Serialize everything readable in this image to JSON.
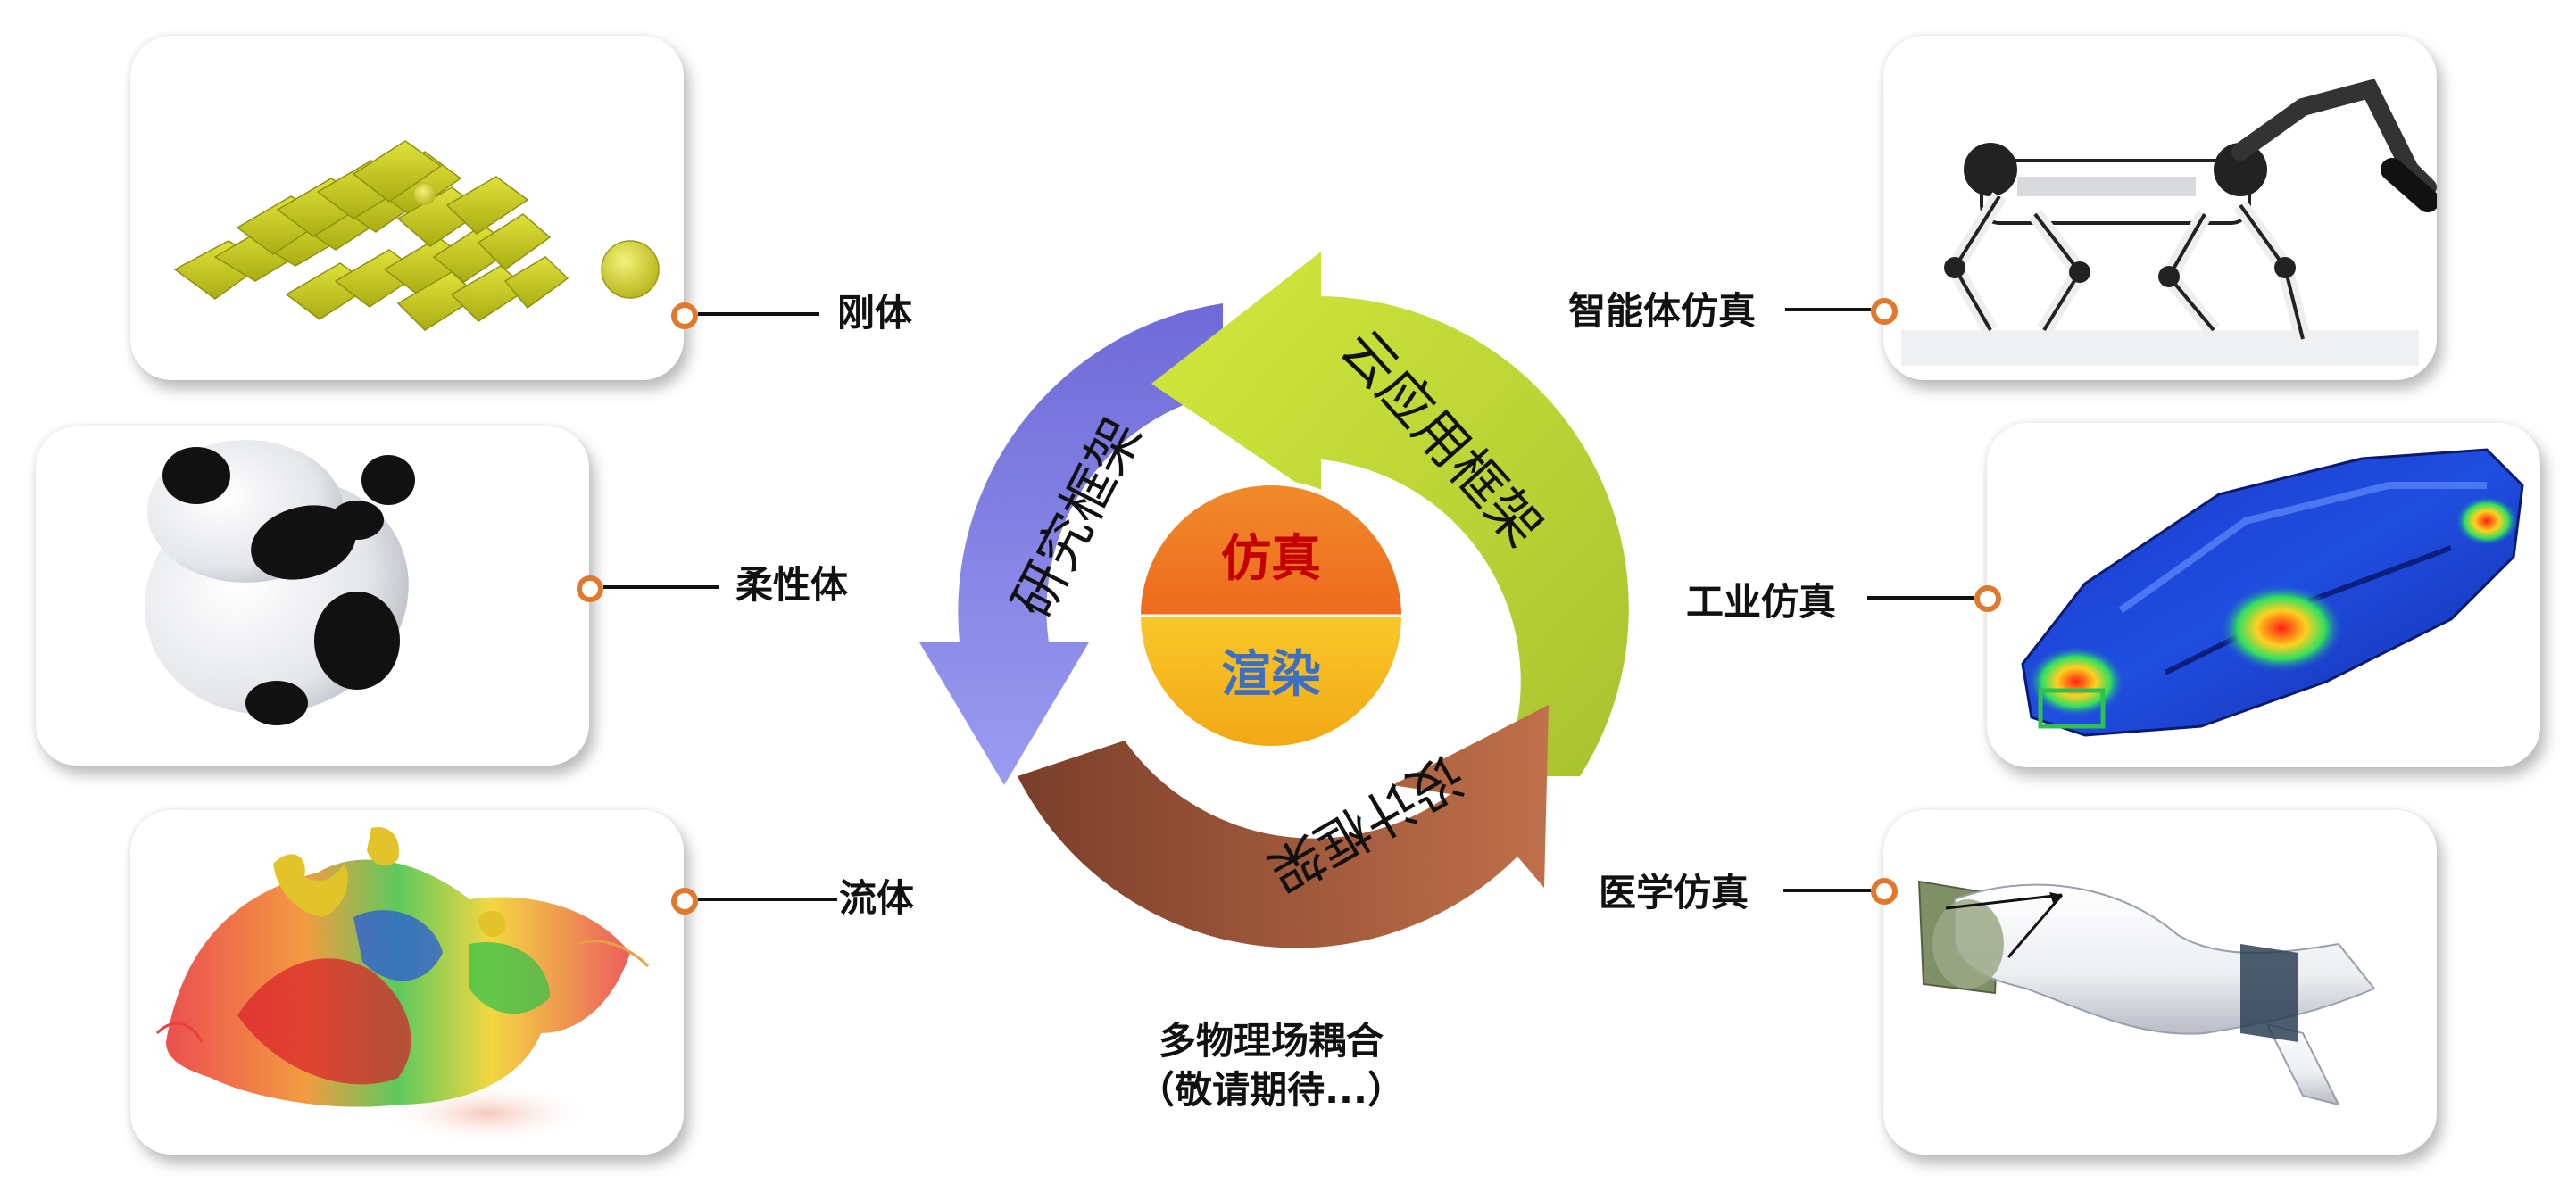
{
  "center": {
    "top_label": "仿真",
    "bottom_label": "渲染"
  },
  "cycle": {
    "left": "研究框架",
    "right": "云应用框架",
    "bottom": "设计框架"
  },
  "left_items": [
    "刚体",
    "柔性体",
    "流体"
  ],
  "right_items": [
    "智能体仿真",
    "工业仿真",
    "医学仿真"
  ],
  "caption": {
    "line1": "多物理场耦合",
    "line2": "（敬请期待...）"
  },
  "colors": {
    "accent_dot": "#e0792c",
    "arrow_purple": "#8a8ae6",
    "arrow_green": "#c4dc3a",
    "arrow_brown": "#a0583a",
    "center_top": "#f07a22",
    "center_bottom": "#f6b91c",
    "center_top_text": "#c40000",
    "center_bottom_text": "#3c6fc4"
  }
}
